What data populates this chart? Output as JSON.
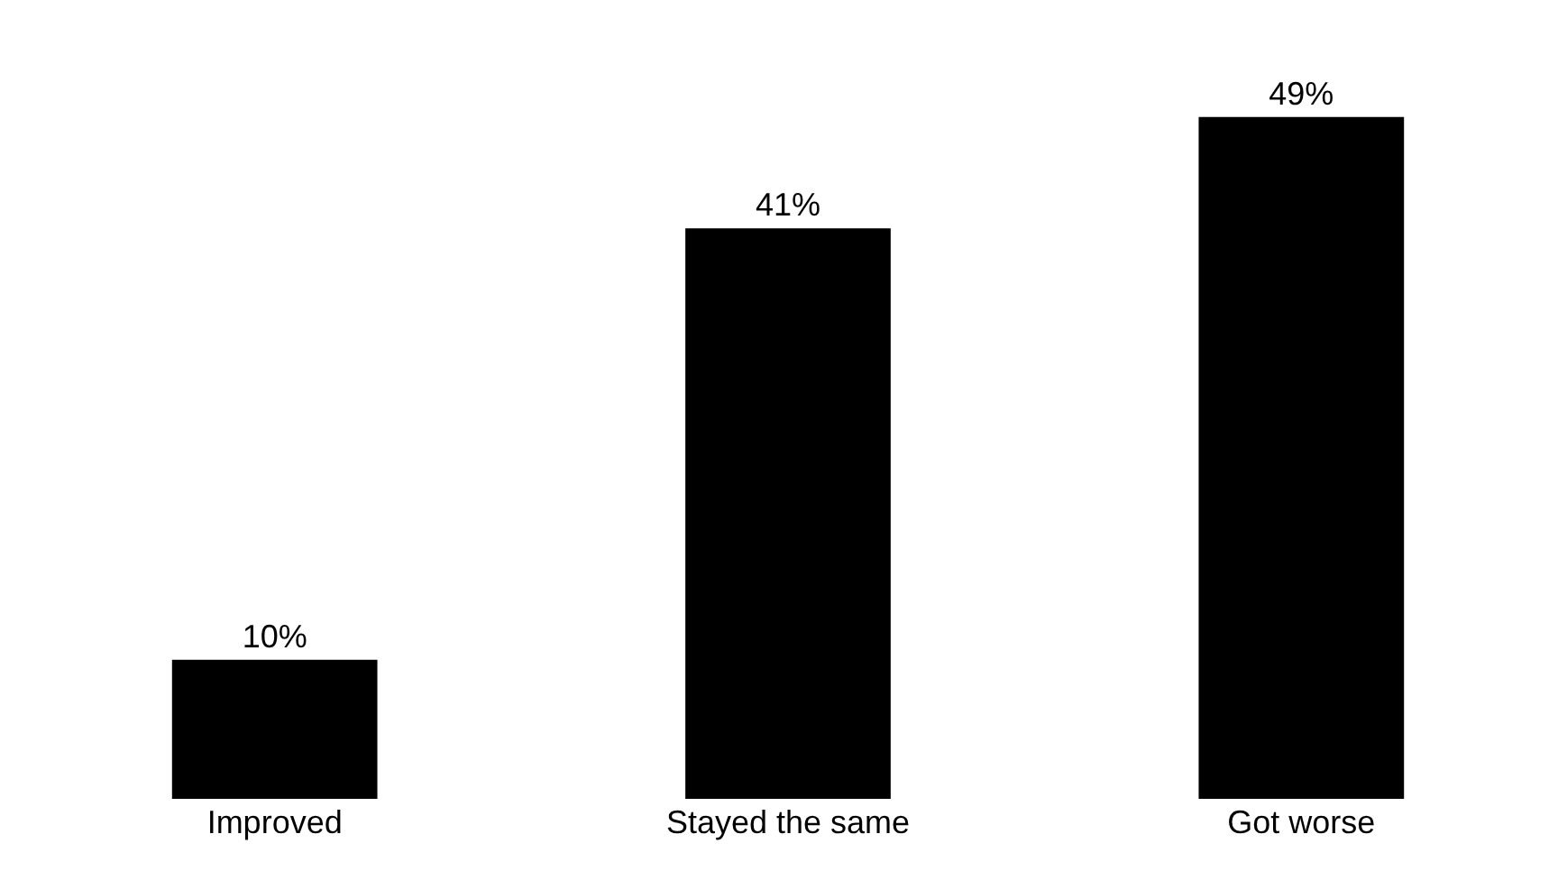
{
  "chart_data": {
    "type": "bar",
    "categories": [
      "Improved",
      "Stayed the same",
      "Got worse"
    ],
    "values": [
      10,
      41,
      49
    ],
    "value_labels": [
      "10%",
      "41%",
      "49%"
    ],
    "color": "#000000"
  }
}
